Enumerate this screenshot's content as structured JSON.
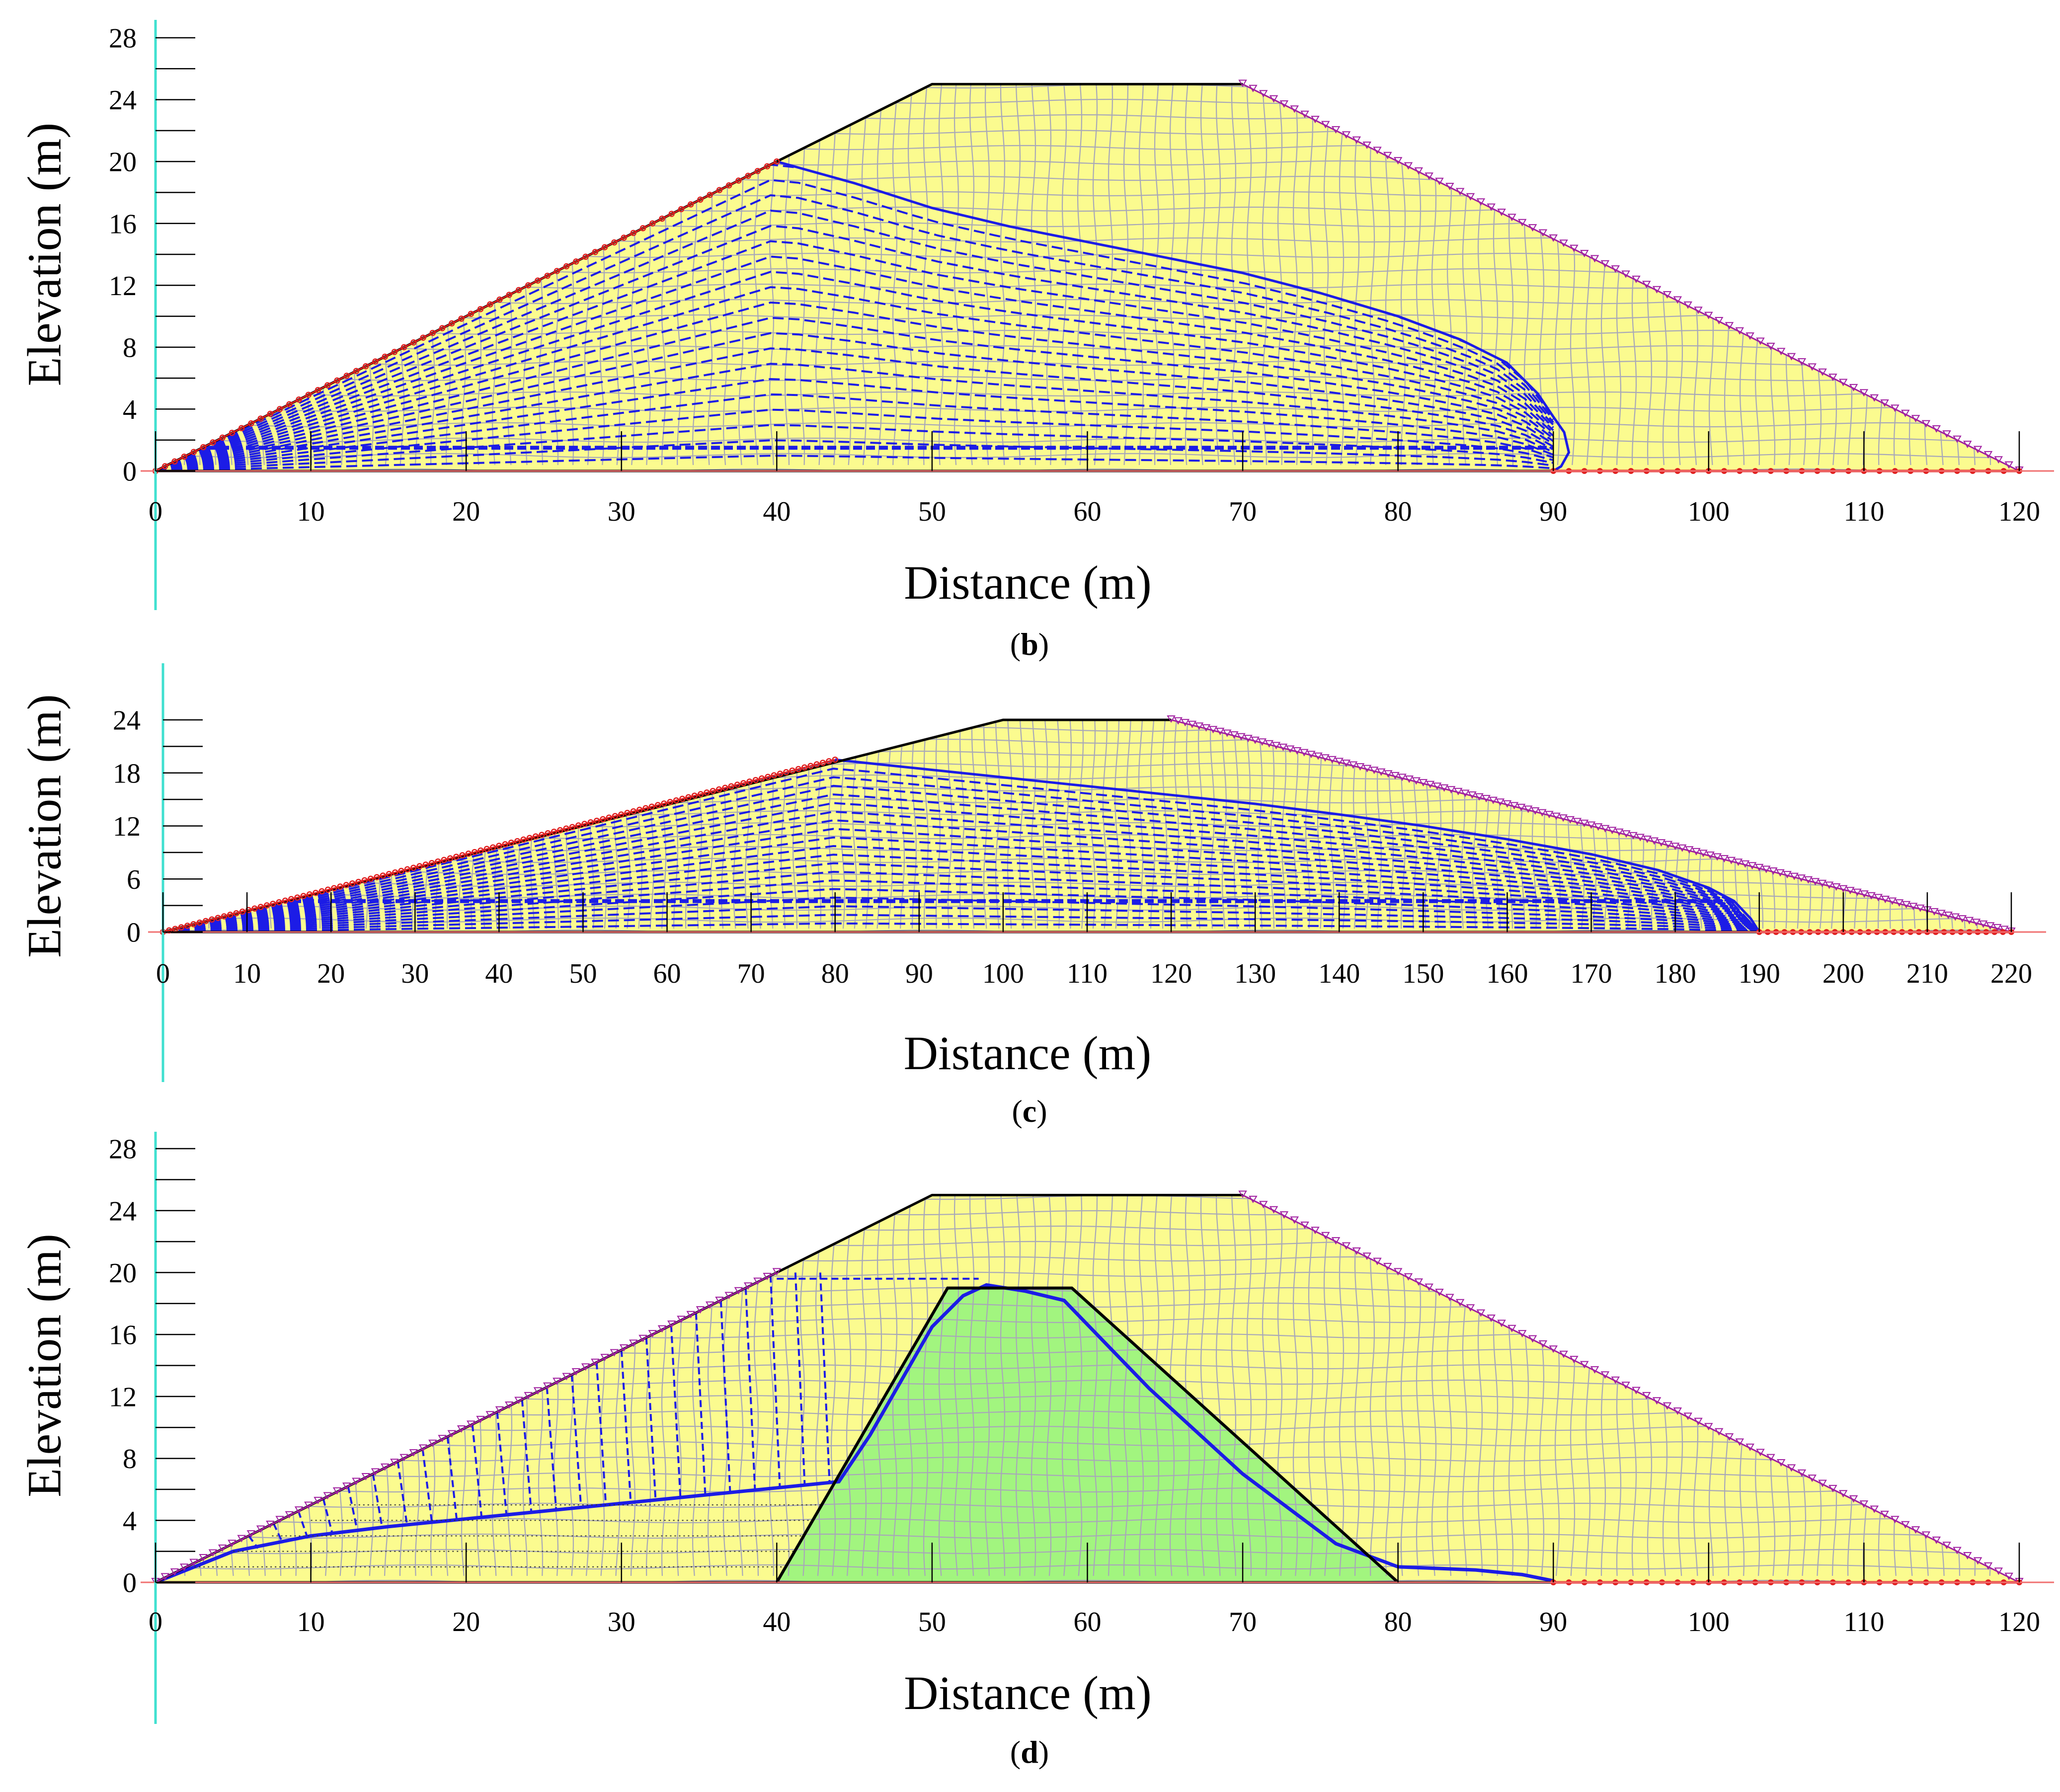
{
  "figure": {
    "panels": [
      "b",
      "c",
      "d"
    ]
  },
  "chart_data": [
    {
      "id": "b",
      "type": "line",
      "title": "",
      "caption_letter": "b",
      "xlabel": "Distance (m)",
      "ylabel": "Elevation (m)",
      "xlim": [
        0,
        120
      ],
      "ylim": [
        0,
        28
      ],
      "xticks": [
        0,
        10,
        20,
        30,
        40,
        50,
        60,
        70,
        80,
        90,
        100,
        110,
        120
      ],
      "yticks": [
        0,
        4,
        8,
        12,
        16,
        20,
        24,
        28
      ],
      "dam_outline": {
        "x": [
          0,
          50,
          70,
          120
        ],
        "y": [
          0,
          25,
          25,
          0
        ]
      },
      "upstream_water_face": {
        "x": [
          0,
          40
        ],
        "y": [
          0,
          20
        ]
      },
      "downstream_seepage_face": {
        "x": [
          70,
          120
        ],
        "y": [
          25,
          0
        ]
      },
      "toe_drain": {
        "x": [
          90,
          120
        ],
        "y": [
          0,
          0
        ]
      },
      "phreatic_line": {
        "x": [
          40,
          45,
          50,
          55,
          60,
          65,
          70,
          75,
          80,
          84,
          87,
          89,
          90,
          90.7,
          91,
          90.5,
          90
        ],
        "y": [
          20,
          18.6,
          17.0,
          15.8,
          14.8,
          13.8,
          12.8,
          11.5,
          10.0,
          8.5,
          7.0,
          5.0,
          3.5,
          2.5,
          1.2,
          0.3,
          0
        ]
      },
      "flow_region_bottom": 1.5,
      "core": null
    },
    {
      "id": "c",
      "type": "line",
      "title": "",
      "caption_letter": "c",
      "xlabel": "Distance (m)",
      "ylabel": "Elevation (m)",
      "xlim": [
        0,
        220
      ],
      "ylim": [
        0,
        24
      ],
      "xticks": [
        0,
        10,
        20,
        30,
        40,
        50,
        60,
        70,
        80,
        90,
        100,
        110,
        120,
        130,
        140,
        150,
        160,
        170,
        180,
        190,
        200,
        210,
        220
      ],
      "yticks": [
        0,
        6,
        12,
        18,
        24
      ],
      "dam_outline": {
        "x": [
          0,
          100,
          120,
          220
        ],
        "y": [
          0,
          24,
          24,
          0
        ]
      },
      "upstream_water_face": {
        "x": [
          0,
          80
        ],
        "y": [
          0,
          19.5
        ]
      },
      "downstream_seepage_face": {
        "x": [
          120,
          220
        ],
        "y": [
          24,
          0
        ]
      },
      "toe_drain": {
        "x": [
          190,
          220
        ],
        "y": [
          0,
          0
        ]
      },
      "phreatic_line": {
        "x": [
          80,
          90,
          100,
          110,
          120,
          130,
          140,
          150,
          160,
          170,
          178,
          184,
          187,
          189,
          190
        ],
        "y": [
          19.5,
          18.5,
          17.5,
          16.5,
          15.5,
          14.5,
          13.3,
          12.0,
          10.5,
          8.8,
          7.0,
          5.0,
          3.5,
          1.5,
          0
        ]
      },
      "flow_region_bottom": 3.5,
      "core": null
    },
    {
      "id": "d",
      "type": "line",
      "title": "",
      "caption_letter": "d",
      "xlabel": "Distance (m)",
      "ylabel": "Elevation (m)",
      "xlim": [
        0,
        120
      ],
      "ylim": [
        0,
        28
      ],
      "xticks": [
        0,
        10,
        20,
        30,
        40,
        50,
        60,
        70,
        80,
        90,
        100,
        110,
        120
      ],
      "yticks": [
        0,
        4,
        8,
        12,
        16,
        20,
        24,
        28
      ],
      "dam_outline": {
        "x": [
          0,
          50,
          70,
          120
        ],
        "y": [
          0,
          25,
          25,
          0
        ]
      },
      "upstream_water_face": {
        "x": [
          0,
          40
        ],
        "y": [
          0,
          20
        ]
      },
      "downstream_seepage_face": {
        "x": [
          70,
          120
        ],
        "y": [
          25,
          0
        ]
      },
      "toe_drain": {
        "x": [
          90,
          120
        ],
        "y": [
          0,
          0
        ]
      },
      "core": {
        "x": [
          40,
          51,
          59,
          80
        ],
        "y": [
          0,
          19,
          19,
          0
        ]
      },
      "phreatic_line": {
        "x": [
          0,
          5,
          10,
          15,
          20,
          25,
          30,
          35,
          40,
          44,
          46,
          48,
          50,
          52,
          53.5,
          56,
          58.5,
          64,
          70,
          76,
          80,
          85,
          88,
          90
        ],
        "y": [
          0,
          2.0,
          3.0,
          3.6,
          4.1,
          4.6,
          5.1,
          5.6,
          6.1,
          6.5,
          9.5,
          13.0,
          16.5,
          18.5,
          19.2,
          18.8,
          18.2,
          12.5,
          7.0,
          2.5,
          1.0,
          0.8,
          0.5,
          0.1
        ]
      },
      "flow_region_bottom": null
    }
  ]
}
